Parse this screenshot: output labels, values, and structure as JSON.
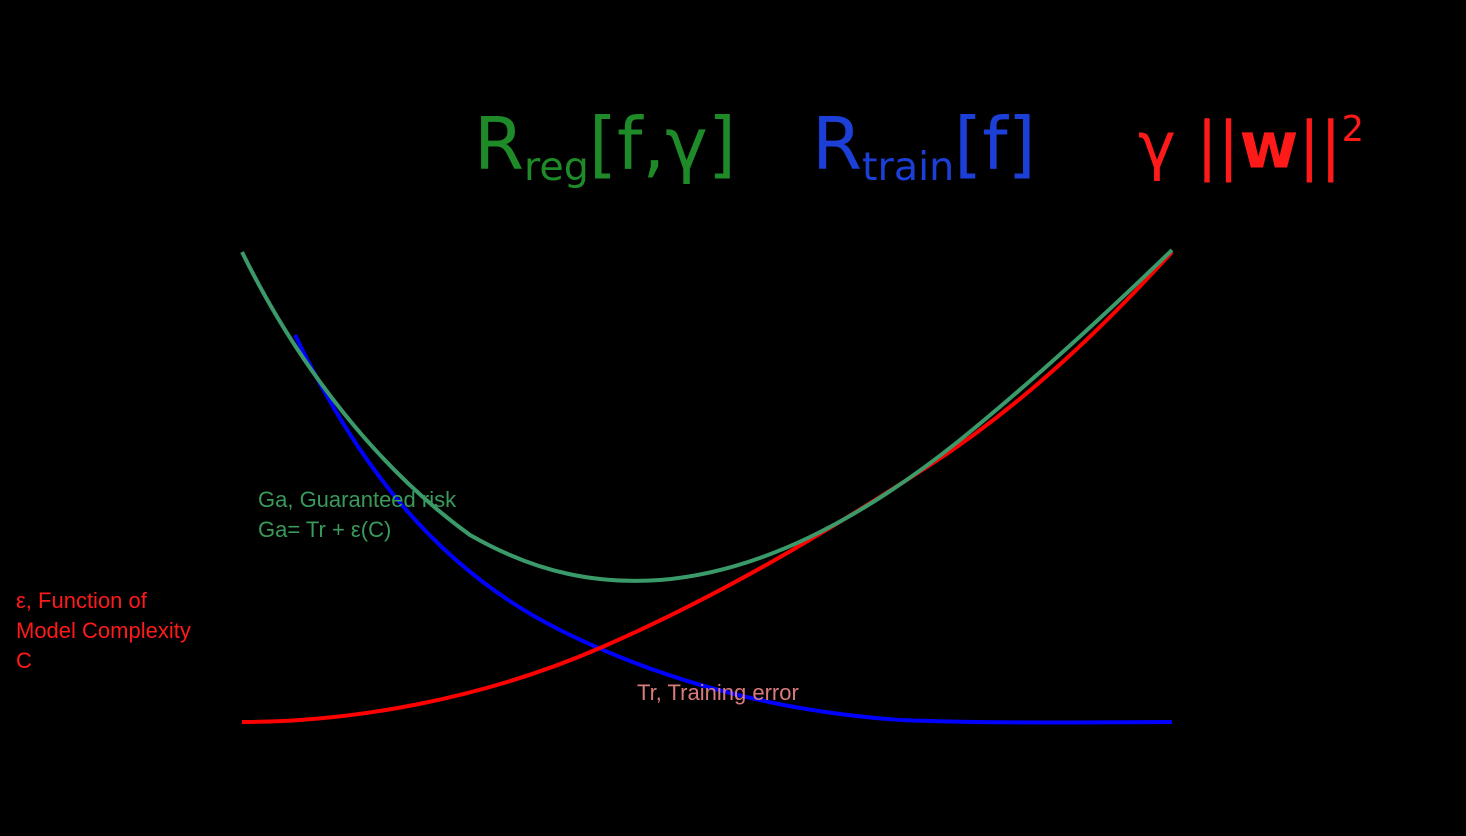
{
  "formulas": {
    "regularized_risk": {
      "symbol": "R",
      "subscript": "reg",
      "args": "[f,γ]",
      "color": "#1e8a28"
    },
    "training_risk": {
      "symbol": "R",
      "subscript": "train",
      "args": "[f]",
      "color": "#1c3fd8"
    },
    "regularizer": {
      "gamma": "γ",
      "bars_left": "||",
      "w": "w",
      "bars_right": "||",
      "exponent": "2",
      "color": "#ff1a1a"
    }
  },
  "labels": {
    "guaranteed_risk": {
      "line1": "Ga, Guaranteed risk",
      "line2": "Ga= Tr + ε(C)"
    },
    "complexity": {
      "line1": "ε, Function of",
      "line2": "Model Complexity",
      "line3": "C"
    },
    "training_error": {
      "line1": "Tr, Training error"
    }
  },
  "curves": {
    "training_error_color": "#0000ff",
    "complexity_color": "#ff0000",
    "guaranteed_risk_color": "#3a9a6a"
  }
}
